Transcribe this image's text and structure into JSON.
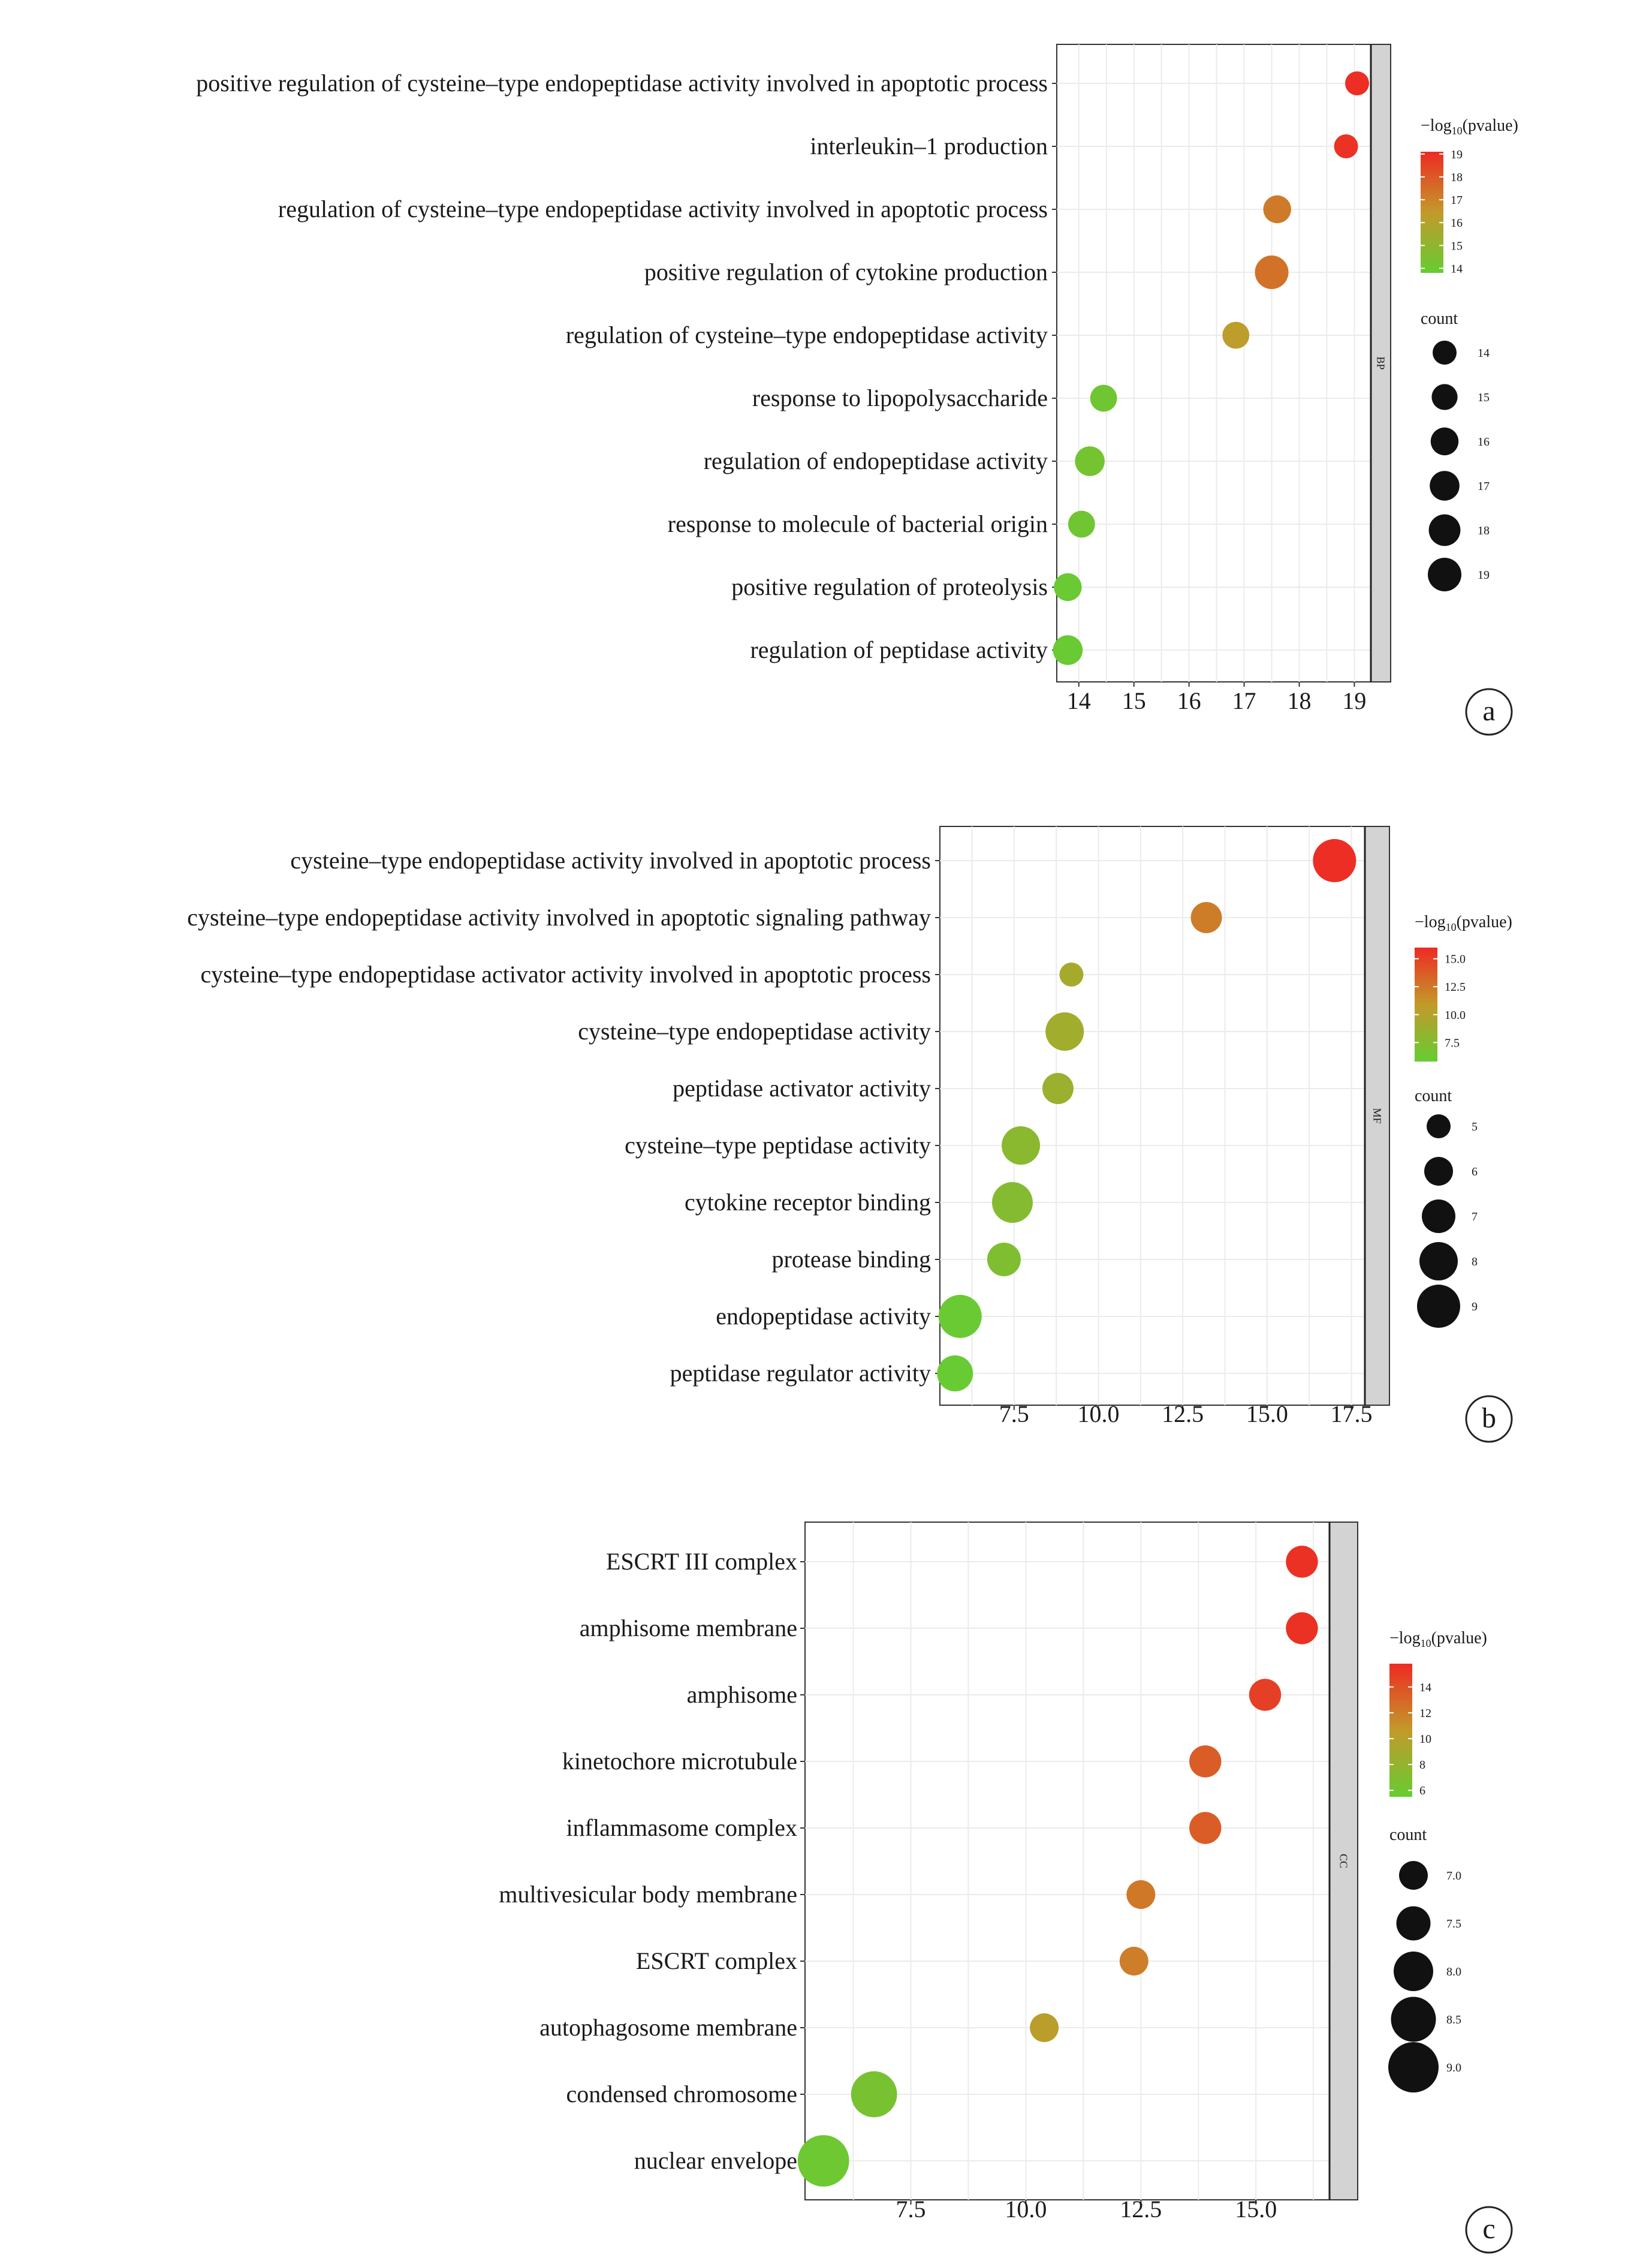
{
  "chart_data": [
    {
      "type": "scatter",
      "panel_label": "a",
      "facet": "BP",
      "x_ticks": [
        14,
        15,
        16,
        17,
        18,
        19
      ],
      "xlim": [
        13.6,
        19.3
      ],
      "categories": [
        "positive regulation of cysteine–type endopeptidase activity involved in apoptotic process",
        "interleukin–1 production",
        "regulation of cysteine–type endopeptidase activity involved in apoptotic process",
        "positive regulation of cytokine production",
        "regulation of cysteine–type endopeptidase activity",
        "response to lipopolysaccharide",
        "regulation of endopeptidase activity",
        "response to molecule of bacterial origin",
        "positive regulation of proteolysis",
        "regulation of peptidase activity"
      ],
      "points": [
        {
          "x": 19.05,
          "count": 14,
          "neglog10p": 19.0
        },
        {
          "x": 18.85,
          "count": 14,
          "neglog10p": 18.9
        },
        {
          "x": 17.6,
          "count": 16,
          "neglog10p": 17.2
        },
        {
          "x": 17.5,
          "count": 19,
          "neglog10p": 17.4
        },
        {
          "x": 16.85,
          "count": 15.5,
          "neglog10p": 16.3
        },
        {
          "x": 14.45,
          "count": 15.5,
          "neglog10p": 14.1
        },
        {
          "x": 14.2,
          "count": 17,
          "neglog10p": 14.2
        },
        {
          "x": 14.05,
          "count": 15.5,
          "neglog10p": 14.1
        },
        {
          "x": 13.8,
          "count": 16,
          "neglog10p": 13.9
        },
        {
          "x": 13.8,
          "count": 17,
          "neglog10p": 13.9
        }
      ],
      "color_legend": {
        "title_prefix": "−log",
        "title_sub": "10",
        "title_suffix": "(pvalue)",
        "ticks": [
          19,
          18,
          17,
          16,
          15,
          14
        ],
        "range": [
          13.8,
          19.1
        ]
      },
      "size_legend": {
        "title": "count",
        "ticks": [
          14,
          15,
          16,
          17,
          18,
          19
        ]
      }
    },
    {
      "type": "scatter",
      "panel_label": "b",
      "facet": "MF",
      "x_ticks": [
        7.5,
        10.0,
        12.5,
        15.0,
        17.5
      ],
      "x_tick_labels": [
        "7.5",
        "10.0",
        "12.5",
        "15.0",
        "17.5"
      ],
      "xlim": [
        5.3,
        17.9
      ],
      "categories": [
        "cysteine–type endopeptidase activity involved in apoptotic process",
        "cysteine–type endopeptidase activity involved in apoptotic signaling pathway",
        "cysteine–type endopeptidase activator activity involved in apoptotic process",
        "cysteine–type endopeptidase activity",
        "peptidase activator activity",
        "cysteine–type peptidase activity",
        "cytokine receptor binding",
        "protease binding",
        "endopeptidase activity",
        "peptidase regulator activity"
      ],
      "points": [
        {
          "x": 17.0,
          "count": 9,
          "neglog10p": 15.8
        },
        {
          "x": 13.2,
          "count": 6.5,
          "neglog10p": 12.2
        },
        {
          "x": 9.2,
          "count": 5,
          "neglog10p": 9.3
        },
        {
          "x": 9.0,
          "count": 8,
          "neglog10p": 9.0
        },
        {
          "x": 8.8,
          "count": 6.5,
          "neglog10p": 8.7
        },
        {
          "x": 7.7,
          "count": 8,
          "neglog10p": 7.8
        },
        {
          "x": 7.45,
          "count": 8.5,
          "neglog10p": 7.5
        },
        {
          "x": 7.2,
          "count": 7,
          "neglog10p": 7.2
        },
        {
          "x": 5.9,
          "count": 9,
          "neglog10p": 6.0
        },
        {
          "x": 5.75,
          "count": 7.5,
          "neglog10p": 5.9
        }
      ],
      "color_legend": {
        "title_prefix": "−log",
        "title_sub": "10",
        "title_suffix": "(pvalue)",
        "ticks": [
          15.0,
          12.5,
          10.0,
          7.5
        ],
        "tick_labels": [
          "15.0",
          "12.5",
          "10.0",
          "7.5"
        ],
        "range": [
          5.8,
          16.0
        ]
      },
      "size_legend": {
        "title": "count",
        "ticks": [
          5,
          6,
          7,
          8,
          9
        ]
      }
    },
    {
      "type": "scatter",
      "panel_label": "c",
      "facet": "CC",
      "x_ticks": [
        7.5,
        10.0,
        12.5,
        15.0
      ],
      "x_tick_labels": [
        "7.5",
        "10.0",
        "12.5",
        "15.0"
      ],
      "xlim": [
        5.2,
        16.6
      ],
      "categories": [
        "ESCRT III complex",
        "amphisome membrane",
        "amphisome",
        "kinetochore microtubule",
        "inflammasome complex",
        "multivesicular body membrane",
        "ESCRT complex",
        "autophagosome membrane",
        "condensed chromosome",
        "nuclear envelope"
      ],
      "points": [
        {
          "x": 16.0,
          "count": 7.3,
          "neglog10p": 15.5
        },
        {
          "x": 16.0,
          "count": 7.3,
          "neglog10p": 15.5
        },
        {
          "x": 15.2,
          "count": 7.3,
          "neglog10p": 14.8
        },
        {
          "x": 13.9,
          "count": 7.3,
          "neglog10p": 13.5
        },
        {
          "x": 13.9,
          "count": 7.3,
          "neglog10p": 13.5
        },
        {
          "x": 12.5,
          "count": 7.0,
          "neglog10p": 12.2
        },
        {
          "x": 12.35,
          "count": 7.0,
          "neglog10p": 12.0
        },
        {
          "x": 10.4,
          "count": 7.0,
          "neglog10p": 10.2
        },
        {
          "x": 6.7,
          "count": 8.6,
          "neglog10p": 6.5
        },
        {
          "x": 5.6,
          "count": 9.1,
          "neglog10p": 5.9
        }
      ],
      "color_legend": {
        "title_prefix": "−log",
        "title_sub": "10",
        "title_suffix": "(pvalue)",
        "ticks": [
          14,
          12,
          10,
          8,
          6
        ],
        "range": [
          5.5,
          15.8
        ]
      },
      "size_legend": {
        "title": "count",
        "ticks": [
          7.0,
          7.5,
          8.0,
          8.5,
          9.0
        ],
        "tick_labels": [
          "7.0",
          "7.5",
          "8.0",
          "8.5",
          "9.0"
        ]
      }
    }
  ]
}
